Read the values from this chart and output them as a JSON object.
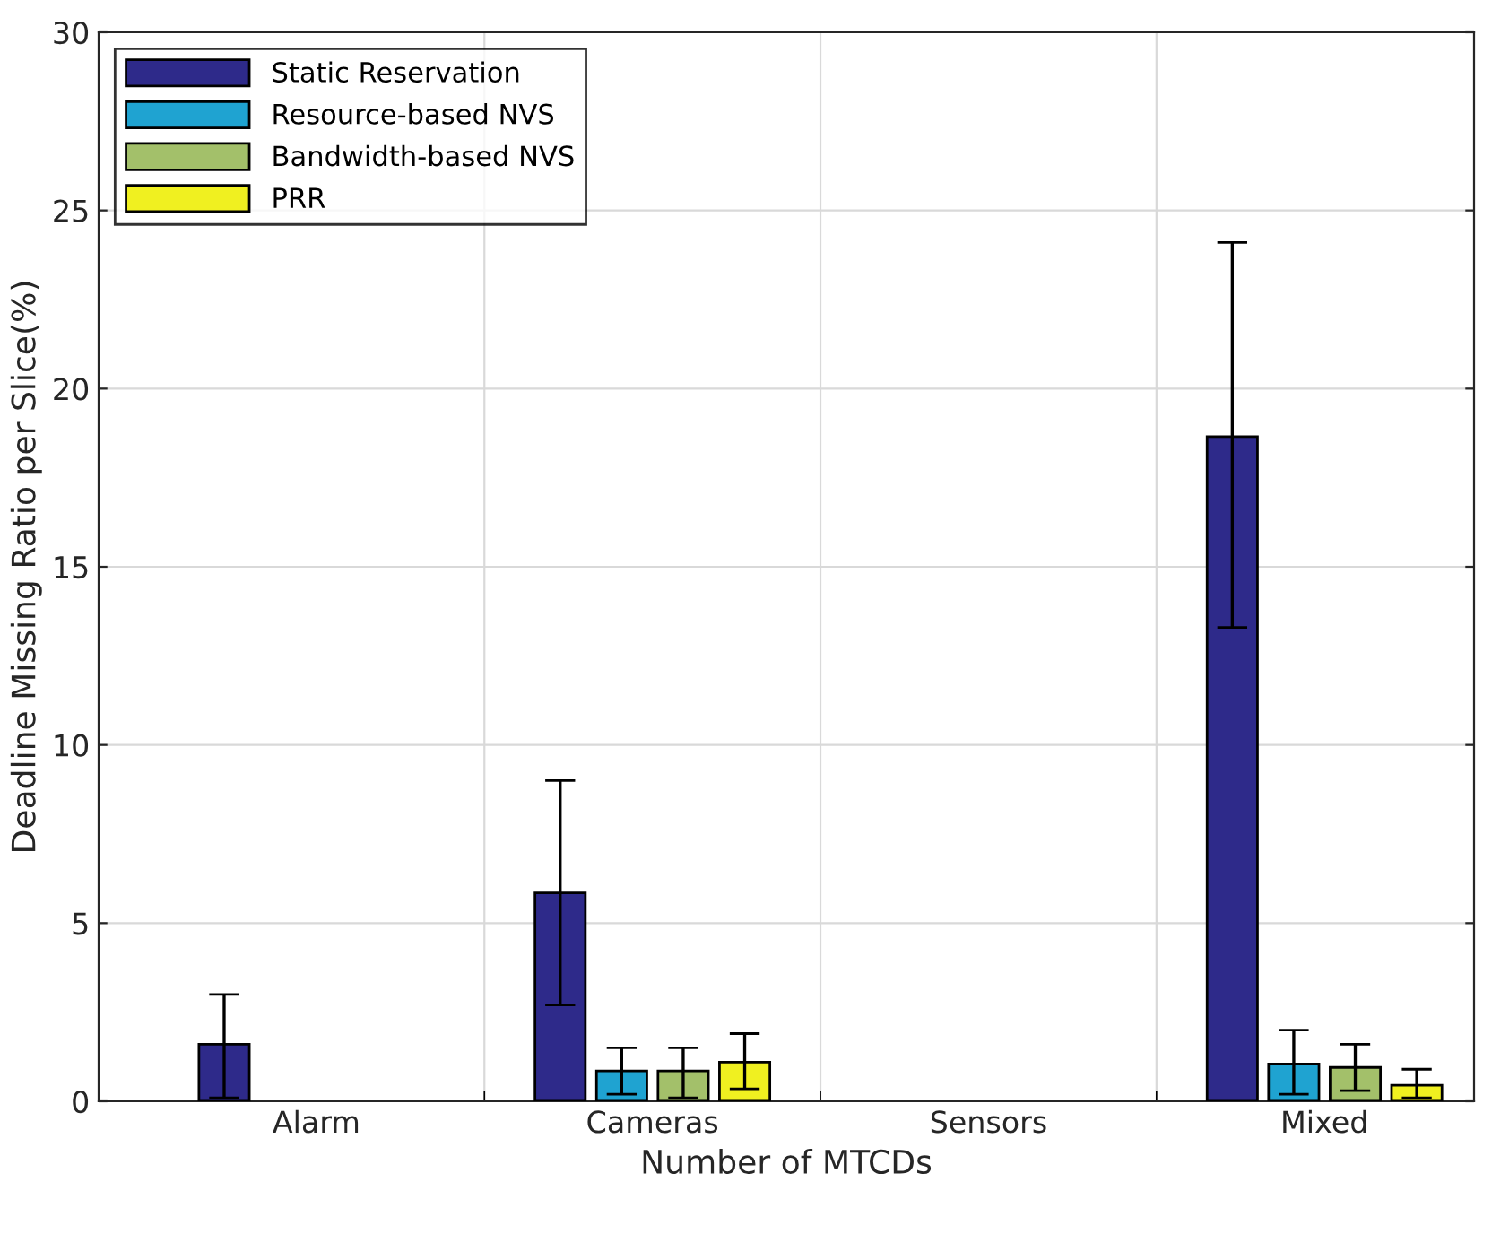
{
  "chart_data": {
    "type": "bar",
    "xlabel": "Number of MTCDs",
    "ylabel": "Deadline Missing Ratio per Slice(%)",
    "categories": [
      "Alarm",
      "Cameras",
      "Sensors",
      "Mixed"
    ],
    "series": [
      {
        "name": "Static Reservation",
        "color": "#2e2a8a",
        "values": [
          1.6,
          5.85,
          null,
          18.65
        ],
        "errors": [
          [
            0.1,
            3.0
          ],
          [
            2.7,
            9.0
          ],
          null,
          [
            13.3,
            24.1
          ]
        ]
      },
      {
        "name": "Resource-based NVS",
        "color": "#1fa3d1",
        "values": [
          null,
          0.85,
          null,
          1.05
        ],
        "errors": [
          null,
          [
            0.2,
            1.5
          ],
          null,
          [
            0.2,
            2.0
          ]
        ]
      },
      {
        "name": "Bandwidth-based NVS",
        "color": "#a3c06a",
        "values": [
          null,
          0.85,
          null,
          0.95
        ],
        "errors": [
          null,
          [
            0.1,
            1.5
          ],
          null,
          [
            0.3,
            1.6
          ]
        ]
      },
      {
        "name": "PRR",
        "color": "#f0f020",
        "values": [
          null,
          1.1,
          null,
          0.45
        ],
        "errors": [
          null,
          [
            0.35,
            1.9
          ],
          null,
          [
            0.1,
            0.9
          ]
        ]
      }
    ],
    "ylim": [
      0,
      30
    ],
    "yticks": [
      0,
      5,
      10,
      15,
      20,
      25,
      30
    ],
    "grid": true,
    "legend": "top left"
  }
}
